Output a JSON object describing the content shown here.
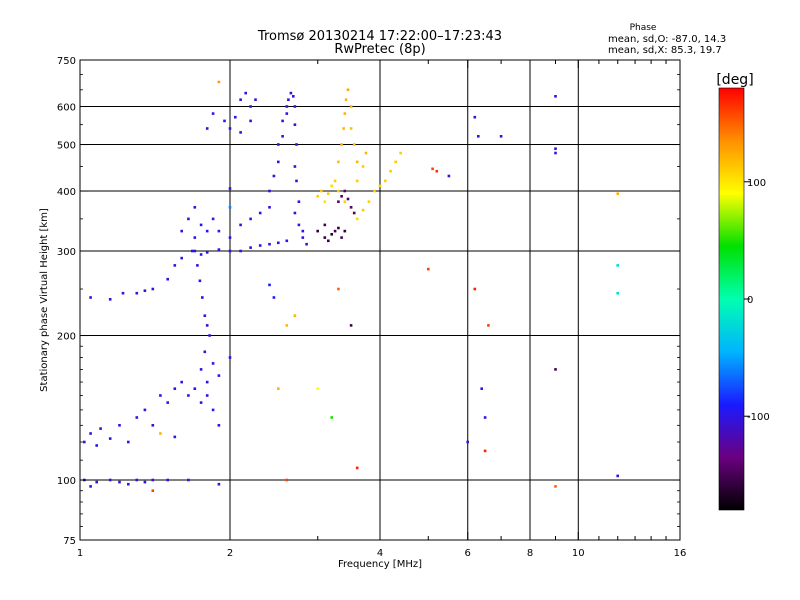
{
  "chart_data": {
    "type": "scatter",
    "title": "Tromsø 20130214 17:22:00–17:23:43",
    "subtitle": "RwPretec (8p)",
    "xlabel": "Frequency [MHz]",
    "ylabel": "Stationary phase Virtual Height [km]",
    "x_scale": "log",
    "y_scale": "log",
    "xlim": [
      1,
      16
    ],
    "ylim": [
      75,
      750
    ],
    "x_ticks": [
      "1",
      "2",
      "4",
      "6",
      "8",
      "10",
      "16"
    ],
    "x_tick_values": [
      1,
      2,
      4,
      6,
      8,
      10,
      16
    ],
    "x_grid_values": [
      2,
      4,
      6,
      8,
      10
    ],
    "y_ticks": [
      "75",
      "100",
      "200",
      "300",
      "400",
      "500",
      "600",
      "750"
    ],
    "y_tick_values": [
      75,
      100,
      200,
      300,
      400,
      500,
      600,
      750
    ],
    "y_grid_values": [
      100,
      200,
      300,
      400,
      500,
      600
    ],
    "grid": true,
    "stats_title": "Phase",
    "stats_lines": [
      "mean, sd,O: -87.0, 14.3",
      "mean, sd,X:  85.3, 19.7"
    ],
    "colorbar": {
      "label": "[deg]",
      "range": [
        -180,
        180
      ],
      "ticks": [
        "100",
        "0",
        "-100"
      ],
      "tick_values": [
        100,
        0,
        -100
      ],
      "colors": [
        "#000000",
        "#6a0080",
        "#1a1aff",
        "#00b4ff",
        "#00ffb0",
        "#00e000",
        "#ffff00",
        "#ff9000",
        "#ff0000"
      ]
    },
    "series": [
      {
        "values": [
          [
            1.02,
            120,
            -100
          ],
          [
            1.05,
            125,
            -100
          ],
          [
            1.08,
            118,
            -95
          ],
          [
            1.1,
            128,
            -100
          ],
          [
            1.15,
            122,
            -100
          ],
          [
            1.2,
            130,
            -98
          ],
          [
            1.25,
            120,
            -100
          ],
          [
            1.3,
            135,
            -100
          ],
          [
            1.35,
            140,
            -95
          ],
          [
            1.4,
            130,
            -100
          ],
          [
            1.45,
            150,
            -100
          ],
          [
            1.5,
            145,
            -100
          ],
          [
            1.55,
            155,
            -100
          ],
          [
            1.6,
            160,
            -100
          ],
          [
            1.65,
            150,
            -100
          ],
          [
            1.7,
            155,
            -100
          ],
          [
            1.75,
            145,
            -100
          ],
          [
            1.8,
            150,
            -100
          ],
          [
            1.85,
            140,
            -90
          ],
          [
            1.9,
            130,
            -100
          ],
          [
            1.02,
            100,
            -100
          ],
          [
            1.05,
            97,
            -100
          ],
          [
            1.08,
            99,
            -95
          ],
          [
            1.15,
            100,
            -100
          ],
          [
            1.2,
            99,
            -100
          ],
          [
            1.25,
            98,
            -100
          ],
          [
            1.3,
            100,
            -100
          ],
          [
            1.35,
            99,
            -100
          ],
          [
            1.4,
            100,
            -100
          ],
          [
            1.5,
            100,
            -100
          ],
          [
            1.65,
            100,
            -100
          ],
          [
            1.9,
            98,
            -100
          ],
          [
            1.05,
            240,
            -100
          ],
          [
            1.15,
            238,
            -100
          ],
          [
            1.22,
            245,
            -100
          ],
          [
            1.3,
            245,
            -95
          ],
          [
            1.35,
            248,
            -100
          ],
          [
            1.4,
            250,
            -100
          ],
          [
            1.5,
            262,
            -100
          ],
          [
            1.55,
            280,
            -100
          ],
          [
            1.6,
            290,
            -100
          ],
          [
            1.7,
            300,
            -100
          ],
          [
            1.75,
            295,
            -100
          ],
          [
            1.8,
            298,
            -100
          ],
          [
            1.9,
            302,
            -100
          ],
          [
            2.0,
            300,
            -95
          ],
          [
            2.1,
            300,
            -100
          ],
          [
            2.2,
            305,
            -100
          ],
          [
            2.3,
            308,
            -100
          ],
          [
            2.4,
            310,
            -100
          ],
          [
            2.5,
            312,
            -100
          ],
          [
            2.6,
            315,
            -100
          ],
          [
            1.6,
            330,
            -100
          ],
          [
            1.65,
            350,
            -100
          ],
          [
            1.7,
            370,
            -100
          ],
          [
            1.75,
            340,
            -100
          ],
          [
            1.8,
            330,
            -95
          ],
          [
            1.85,
            350,
            -100
          ],
          [
            1.9,
            330,
            -100
          ],
          [
            2.0,
            320,
            -100
          ],
          [
            2.1,
            340,
            -100
          ],
          [
            2.2,
            350,
            -100
          ],
          [
            2.3,
            360,
            -100
          ],
          [
            2.4,
            370,
            -100
          ],
          [
            1.68,
            300,
            -100
          ],
          [
            1.7,
            320,
            -100
          ],
          [
            1.72,
            280,
            -100
          ],
          [
            1.74,
            260,
            -100
          ],
          [
            1.76,
            240,
            -100
          ],
          [
            1.78,
            220,
            -100
          ],
          [
            1.8,
            210,
            -100
          ],
          [
            1.82,
            200,
            -100
          ],
          [
            1.78,
            185,
            -100
          ],
          [
            1.75,
            170,
            -100
          ],
          [
            1.8,
            160,
            -100
          ],
          [
            1.85,
            175,
            -100
          ],
          [
            1.9,
            165,
            -100
          ],
          [
            2.0,
            180,
            -100
          ],
          [
            2.4,
            400,
            -100
          ],
          [
            2.45,
            430,
            -100
          ],
          [
            2.5,
            460,
            -100
          ],
          [
            2.5,
            500,
            -100
          ],
          [
            2.55,
            520,
            -100
          ],
          [
            2.55,
            560,
            -100
          ],
          [
            2.6,
            580,
            -100
          ],
          [
            2.6,
            600,
            -100
          ],
          [
            2.62,
            620,
            -100
          ],
          [
            2.65,
            640,
            -100
          ],
          [
            2.68,
            630,
            -100
          ],
          [
            2.7,
            600,
            -100
          ],
          [
            2.7,
            550,
            -100
          ],
          [
            2.72,
            500,
            -100
          ],
          [
            2.7,
            450,
            -100
          ],
          [
            2.72,
            420,
            -100
          ],
          [
            2.75,
            380,
            -100
          ],
          [
            2.7,
            360,
            -100
          ],
          [
            2.75,
            340,
            -100
          ],
          [
            2.8,
            330,
            -100
          ],
          [
            2.8,
            320,
            -100
          ],
          [
            2.85,
            310,
            -100
          ],
          [
            2.1,
            620,
            -100
          ],
          [
            2.15,
            640,
            -100
          ],
          [
            2.2,
            600,
            -100
          ],
          [
            2.25,
            620,
            -100
          ],
          [
            2.2,
            560,
            -100
          ],
          [
            2.05,
            570,
            -100
          ],
          [
            2.0,
            540,
            -100
          ],
          [
            1.95,
            560,
            -95
          ],
          [
            1.85,
            580,
            -100
          ],
          [
            1.8,
            540,
            -100
          ],
          [
            2.1,
            530,
            -100
          ],
          [
            3.0,
            330,
            -160
          ],
          [
            3.1,
            320,
            -160
          ],
          [
            3.15,
            315,
            -155
          ],
          [
            3.2,
            325,
            -160
          ],
          [
            3.25,
            330,
            -150
          ],
          [
            3.3,
            335,
            -160
          ],
          [
            3.1,
            340,
            -150
          ],
          [
            3.35,
            320,
            -150
          ],
          [
            3.4,
            330,
            -160
          ],
          [
            3.0,
            390,
            110
          ],
          [
            3.05,
            400,
            110
          ],
          [
            3.1,
            380,
            100
          ],
          [
            3.15,
            395,
            110
          ],
          [
            3.2,
            410,
            105
          ],
          [
            3.25,
            420,
            110
          ],
          [
            3.3,
            400,
            110
          ],
          [
            3.4,
            380,
            110
          ],
          [
            3.5,
            370,
            110
          ],
          [
            3.55,
            360,
            110
          ],
          [
            3.6,
            350,
            105
          ],
          [
            3.7,
            365,
            110
          ],
          [
            3.8,
            380,
            110
          ],
          [
            3.9,
            400,
            110
          ],
          [
            4.0,
            410,
            110
          ],
          [
            4.1,
            420,
            110
          ],
          [
            4.2,
            440,
            110
          ],
          [
            4.3,
            460,
            110
          ],
          [
            4.4,
            480,
            110
          ],
          [
            3.3,
            460,
            115
          ],
          [
            3.35,
            500,
            120
          ],
          [
            3.38,
            540,
            120
          ],
          [
            3.4,
            580,
            120
          ],
          [
            3.42,
            620,
            120
          ],
          [
            3.45,
            650,
            125
          ],
          [
            3.5,
            600,
            120
          ],
          [
            3.5,
            540,
            115
          ],
          [
            3.55,
            500,
            115
          ],
          [
            3.6,
            460,
            120
          ],
          [
            3.6,
            420,
            110
          ],
          [
            3.7,
            450,
            110
          ],
          [
            3.75,
            480,
            120
          ],
          [
            3.3,
            380,
            -140
          ],
          [
            3.35,
            390,
            -145
          ],
          [
            3.4,
            400,
            -140
          ],
          [
            3.45,
            385,
            -150
          ],
          [
            3.5,
            370,
            -140
          ],
          [
            3.55,
            360,
            -145
          ],
          [
            5.0,
            275,
            160
          ],
          [
            5.1,
            445,
            160
          ],
          [
            5.2,
            440,
            165
          ],
          [
            6.2,
            250,
            170
          ],
          [
            6.5,
            115,
            170
          ],
          [
            6.6,
            210,
            160
          ],
          [
            6.5,
            135,
            -100
          ],
          [
            6.4,
            155,
            -100
          ],
          [
            6.0,
            120,
            -100
          ],
          [
            7.0,
            520,
            -100
          ],
          [
            6.2,
            570,
            -100
          ],
          [
            6.3,
            520,
            -100
          ],
          [
            5.5,
            430,
            -100
          ],
          [
            9.0,
            630,
            -100
          ],
          [
            9.0,
            490,
            -100
          ],
          [
            9.0,
            480,
            -100
          ],
          [
            9.0,
            170,
            -150
          ],
          [
            12.0,
            280,
            -20
          ],
          [
            12.0,
            245,
            -20
          ],
          [
            12.0,
            102,
            -100
          ],
          [
            12.0,
            395,
            120
          ],
          [
            9.0,
            97,
            150
          ],
          [
            3.6,
            106,
            170
          ],
          [
            3.5,
            210,
            -150
          ],
          [
            3.3,
            250,
            150
          ],
          [
            2.6,
            210,
            120
          ],
          [
            2.7,
            220,
            120
          ],
          [
            2.6,
            100,
            160
          ],
          [
            3.2,
            135,
            50
          ],
          [
            3.0,
            155,
            90
          ],
          [
            2.5,
            155,
            120
          ],
          [
            2.4,
            255,
            -90
          ],
          [
            2.45,
            240,
            -90
          ],
          [
            1.9,
            675,
            130
          ],
          [
            2.0,
            405,
            -100
          ],
          [
            2.0,
            370,
            -60
          ],
          [
            1.55,
            123,
            -100
          ],
          [
            1.45,
            125,
            120
          ],
          [
            1.4,
            95,
            160
          ]
        ]
      }
    ]
  }
}
